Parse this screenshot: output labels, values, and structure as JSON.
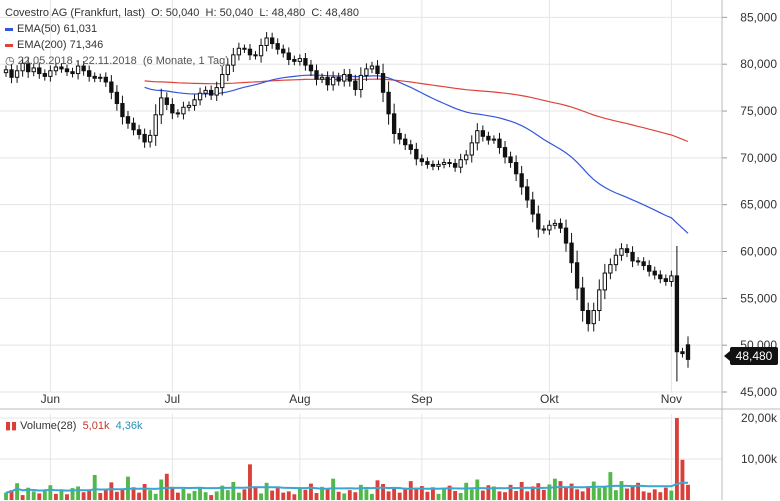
{
  "header": {
    "title": "Covestro AG (Frankfurt, last)",
    "ohlc": "O: 50,040  H: 50,040  L: 48,480  C: 48,480",
    "ema50": "EMA(50)",
    "ema50_value": "61,031",
    "ema200": "EMA(200)",
    "ema200_value": "71,346",
    "period": "22.05.2018 - 22.11.2018",
    "range": "(6 Monate, 1 Tag)"
  },
  "last_price_label": "48,480",
  "volume_header": {
    "label": "Volume(28)",
    "value1": "5,01k",
    "value2": "4,36k"
  },
  "colors": {
    "ema50": "#3355dd",
    "ema200": "#e0433a",
    "volume_up": "#52b84a",
    "volume_down": "#d9403a",
    "volume_avg": "#3aa7d0",
    "grid": "#e5e5e5"
  },
  "chart_data": [
    {
      "type": "candlestick",
      "title": "Covestro AG (Frankfurt, last)",
      "ylim": [
        45,
        86
      ],
      "yticks": [
        45,
        50,
        55,
        60,
        65,
        70,
        75,
        80,
        85
      ],
      "ytick_labels": [
        "45,000",
        "50,000",
        "55,000",
        "60,000",
        "65,000",
        "70,000",
        "75,000",
        "80,000",
        "85,000"
      ],
      "x_labels": [
        "Jun",
        "Jul",
        "Aug",
        "Sep",
        "Okt",
        "Nov"
      ],
      "x_label_index": [
        8,
        30,
        53,
        75,
        98,
        120
      ],
      "grid": true,
      "close": [
        79.4,
        78.6,
        79.3,
        80.1,
        79.2,
        79.6,
        79.0,
        78.7,
        79.3,
        79.7,
        79.5,
        79.2,
        79.0,
        79.8,
        79.3,
        78.7,
        78.5,
        78.6,
        78.1,
        77.0,
        75.8,
        74.4,
        73.7,
        73.0,
        72.5,
        71.7,
        72.4,
        74.6,
        76.4,
        75.7,
        74.8,
        74.7,
        75.4,
        75.6,
        76.2,
        76.9,
        77.2,
        76.7,
        77.5,
        78.9,
        79.9,
        81.0,
        81.7,
        81.6,
        81.0,
        80.9,
        82.0,
        82.8,
        82.2,
        81.6,
        81.2,
        80.5,
        80.3,
        80.6,
        79.9,
        79.3,
        78.4,
        78.6,
        77.8,
        78.6,
        78.2,
        78.9,
        78.2,
        77.3,
        78.8,
        79.5,
        79.8,
        79.0,
        77.0,
        74.7,
        72.6,
        72.0,
        71.4,
        70.9,
        69.9,
        69.6,
        69.3,
        69.1,
        69.3,
        69.5,
        69.4,
        69.0,
        69.8,
        70.3,
        71.6,
        72.9,
        72.3,
        71.9,
        72.0,
        71.1,
        70.1,
        69.5,
        68.3,
        66.9,
        65.5,
        64.0,
        62.4,
        62.3,
        62.8,
        63.0,
        62.5,
        60.9,
        58.8,
        56.1,
        53.7,
        52.3,
        53.7,
        55.9,
        57.7,
        58.6,
        59.6,
        60.3,
        59.9,
        59.0,
        58.9,
        58.5,
        57.9,
        57.5,
        57.1,
        56.8,
        57.4,
        49.3,
        49.1,
        48.48
      ],
      "ohlc_last": {
        "open": 50.04,
        "high": 50.04,
        "low": 48.48,
        "close": 48.48
      }
    },
    {
      "type": "line",
      "series": [
        {
          "name": "EMA(50)",
          "last": 61.031
        },
        {
          "name": "EMA(200)",
          "last": 71.346
        }
      ]
    },
    {
      "type": "bar",
      "title": "Volume(28)",
      "ylim": [
        0,
        20
      ],
      "yticks": [
        10,
        20
      ],
      "ytick_labels": [
        "10,00k",
        "20,00k"
      ],
      "values_k": [
        1.8,
        2.4,
        4.1,
        1.2,
        3.0,
        2.1,
        1.6,
        2.6,
        3.6,
        1.5,
        2.2,
        1.4,
        2.9,
        3.3,
        1.9,
        2.5,
        6.1,
        1.7,
        2.8,
        4.3,
        2.0,
        2.6,
        5.7,
        3.1,
        1.8,
        3.9,
        2.4,
        1.5,
        5.0,
        6.4,
        3.2,
        1.8,
        2.7,
        1.6,
        2.2,
        3.0,
        1.9,
        1.2,
        2.1,
        3.5,
        2.4,
        4.4,
        1.8,
        2.6,
        8.7,
        3.3,
        1.6,
        4.2,
        2.3,
        2.9,
        1.8,
        2.1,
        1.4,
        3.1,
        2.5,
        4.0,
        1.7,
        3.2,
        2.8,
        5.2,
        2.0,
        1.6,
        2.4,
        1.9,
        3.7,
        2.6,
        1.5,
        4.8,
        3.9,
        2.1,
        2.7,
        1.8,
        3.0,
        4.6,
        2.8,
        3.4,
        2.0,
        3.1,
        1.5,
        2.9,
        3.5,
        2.2,
        1.7,
        4.2,
        2.6,
        5.0,
        2.3,
        3.6,
        3.3,
        2.1,
        1.9,
        3.7,
        2.2,
        4.4,
        2.1,
        3.3,
        4.1,
        2.5,
        3.8,
        5.2,
        4.6,
        3.1,
        4.0,
        2.6,
        2.1,
        3.4,
        4.5,
        2.9,
        3.3,
        6.8,
        2.4,
        4.6,
        2.8,
        3.5,
        4.2,
        2.1,
        1.8,
        2.6,
        1.9,
        3.0,
        2.3,
        20.0,
        9.8,
        3.7
      ],
      "up": [
        true,
        false,
        true,
        false,
        true,
        true,
        false,
        true,
        true,
        false,
        true,
        false,
        true,
        true,
        false,
        false,
        true,
        false,
        false,
        false,
        false,
        false,
        true,
        false,
        false,
        false,
        true,
        true,
        true,
        false,
        false,
        false,
        true,
        true,
        true,
        true,
        true,
        false,
        true,
        true,
        true,
        true,
        true,
        false,
        false,
        false,
        true,
        true,
        false,
        false,
        false,
        false,
        false,
        true,
        false,
        false,
        false,
        true,
        false,
        true,
        false,
        true,
        false,
        false,
        true,
        true,
        true,
        false,
        false,
        false,
        false,
        false,
        false,
        false,
        false,
        false,
        false,
        false,
        true,
        true,
        false,
        false,
        true,
        true,
        true,
        true,
        false,
        false,
        true,
        false,
        false,
        false,
        false,
        false,
        false,
        false,
        false,
        false,
        true,
        true,
        false,
        false,
        false,
        false,
        false,
        false,
        true,
        true,
        true,
        true,
        true,
        true,
        false,
        false,
        false,
        false,
        false,
        false,
        false,
        false,
        true,
        false,
        false,
        false
      ]
    }
  ]
}
